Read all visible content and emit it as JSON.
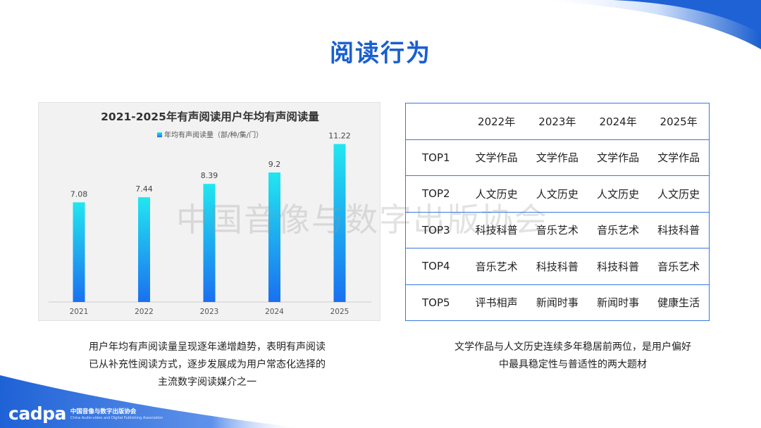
{
  "title": "阅读行为",
  "chart_data": {
    "type": "bar",
    "title": "2021-2025年有声阅读用户年均有声阅读量",
    "categories": [
      "2021",
      "2022",
      "2023",
      "2024",
      "2025"
    ],
    "series": [
      {
        "name": "年均有声阅读量（部/种/集/门）",
        "values": [
          7.08,
          7.44,
          8.39,
          9.2,
          11.22
        ]
      }
    ],
    "value_labels": [
      "7.08",
      "7.44",
      "8.39",
      "9.2",
      "11.22"
    ],
    "ylim": [
      0,
      12
    ],
    "grid": false,
    "legend": "top-center",
    "colors": {
      "bar_top": "#22e6f0",
      "bar_bottom": "#1a70f0"
    }
  },
  "table": {
    "headers": [
      "",
      "2022年",
      "2023年",
      "2024年",
      "2025年"
    ],
    "rows": [
      [
        "TOP1",
        "文学作品",
        "文学作品",
        "文学作品",
        "文学作品"
      ],
      [
        "TOP2",
        "人文历史",
        "人文历史",
        "人文历史",
        "人文历史"
      ],
      [
        "TOP3",
        "科技科普",
        "音乐艺术",
        "音乐艺术",
        "科技科普"
      ],
      [
        "TOP4",
        "音乐艺术",
        "科技科普",
        "科技科普",
        "音乐艺术"
      ],
      [
        "TOP5",
        "评书相声",
        "新闻时事",
        "新闻时事",
        "健康生活"
      ]
    ]
  },
  "captions": {
    "left": [
      "用户年均有声阅读量呈现逐年递增趋势，表明有声阅读",
      "已从补充性阅读方式，逐步发展成为用户常态化选择的",
      "主流数字阅读媒介之一"
    ],
    "right": [
      "文学作品与人文历史连续多年稳居前两位，是用户偏好",
      "中最具稳定性与普适性的两大题材"
    ]
  },
  "watermark": "中国音像与数字出版协会",
  "logo": {
    "mark": "cadpa",
    "name_cn": "中国音像与数字出版协会",
    "name_en": "China Audio-video and Digital Publishing Association"
  },
  "colors": {
    "accent": "#1a5fd0",
    "table_border": "#3a78e0"
  }
}
